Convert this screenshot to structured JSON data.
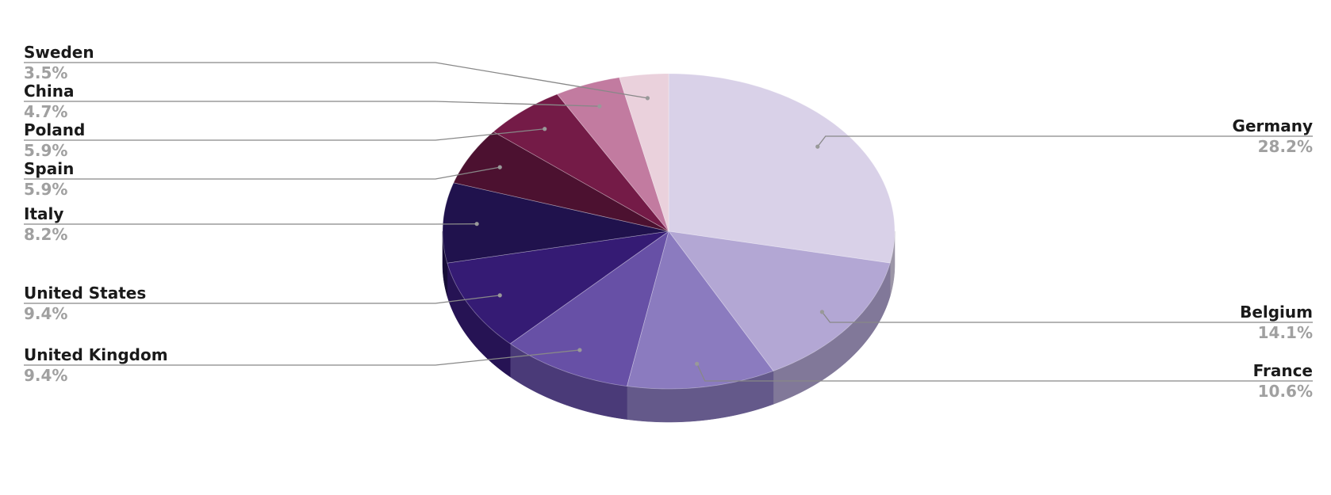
{
  "chart_data": {
    "type": "pie",
    "style": "3d",
    "start": "top, clockwise",
    "legend": "none (leader-line labels)",
    "slices": [
      {
        "label": "Germany",
        "value": 28.2,
        "pct": "28.2%",
        "color": "#d9d1e8",
        "side": "right"
      },
      {
        "label": "Belgium",
        "value": 14.1,
        "pct": "14.1%",
        "color": "#b3a7d4",
        "side": "right"
      },
      {
        "label": "France",
        "value": 10.6,
        "pct": "10.6%",
        "color": "#8b7bbf",
        "side": "right"
      },
      {
        "label": "United Kingdom",
        "value": 9.4,
        "pct": "9.4%",
        "color": "#6750a6",
        "side": "left"
      },
      {
        "label": "United States",
        "value": 9.4,
        "pct": "9.4%",
        "color": "#351b74",
        "side": "left"
      },
      {
        "label": "Italy",
        "value": 8.2,
        "pct": "8.2%",
        "color": "#20124d",
        "side": "left"
      },
      {
        "label": "Spain",
        "value": 5.9,
        "pct": "5.9%",
        "color": "#4c1130",
        "side": "left"
      },
      {
        "label": "Poland",
        "value": 5.9,
        "pct": "5.9%",
        "color": "#741b47",
        "side": "left"
      },
      {
        "label": "China",
        "value": 4.7,
        "pct": "4.7%",
        "color": "#c27ba0",
        "side": "left"
      },
      {
        "label": "Sweden",
        "value": 3.5,
        "pct": "3.5%",
        "color": "#ead1dc",
        "side": "left"
      }
    ]
  }
}
